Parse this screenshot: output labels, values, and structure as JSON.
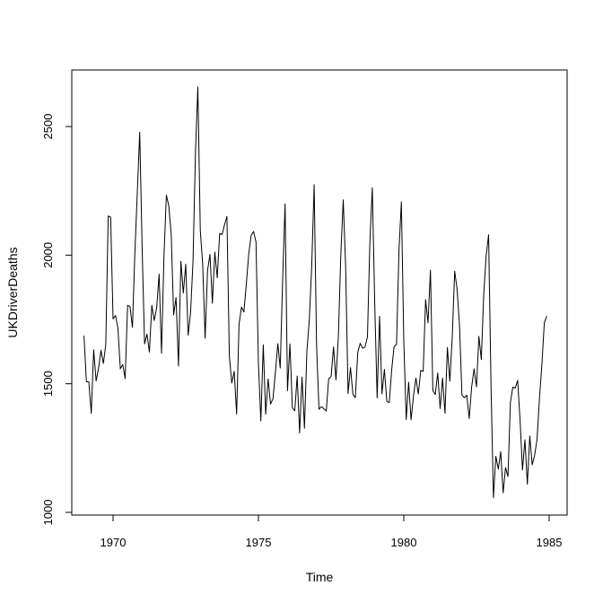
{
  "chart_data": {
    "type": "line",
    "title": "",
    "xlabel": "Time",
    "ylabel": "UKDriverDeaths",
    "xlim": [
      1968.8,
      1985.1
    ],
    "ylim": [
      1000,
      2700
    ],
    "x_ticks": [
      1970,
      1975,
      1980,
      1985
    ],
    "y_ticks": [
      1000,
      1500,
      2000,
      2500
    ],
    "grid": false,
    "legend": "none",
    "line_color": "#000000",
    "x_start": 1969,
    "frequency": 12,
    "series": [
      {
        "values": [
          1687,
          1508,
          1507,
          1385,
          1632,
          1511,
          1559,
          1630,
          1579,
          1653,
          2152,
          2148,
          1752,
          1765,
          1717,
          1558,
          1575,
          1520,
          1805,
          1800,
          1719,
          2008,
          2242,
          2478,
          2030,
          1655,
          1693,
          1623,
          1805,
          1746,
          1795,
          1926,
          1619,
          1992,
          2233,
          2192,
          2080,
          1768,
          1835,
          1569,
          1976,
          1853,
          1965,
          1689,
          1778,
          1976,
          2397,
          2654,
          2097,
          1963,
          1677,
          1941,
          2003,
          1813,
          2012,
          1912,
          2084,
          2080,
          2118,
          2150,
          1608,
          1503,
          1548,
          1382,
          1731,
          1798,
          1779,
          1887,
          2004,
          2077,
          2092,
          2051,
          1577,
          1356,
          1652,
          1382,
          1519,
          1421,
          1442,
          1543,
          1656,
          1561,
          1905,
          2199,
          1473,
          1655,
          1407,
          1395,
          1530,
          1309,
          1526,
          1327,
          1627,
          1748,
          1958,
          2274,
          1648,
          1401,
          1411,
          1403,
          1394,
          1520,
          1528,
          1643,
          1515,
          1685,
          2000,
          2215,
          1956,
          1462,
          1563,
          1459,
          1446,
          1622,
          1657,
          1638,
          1643,
          1683,
          2050,
          2262,
          1813,
          1445,
          1762,
          1461,
          1556,
          1431,
          1427,
          1554,
          1645,
          1653,
          2016,
          2207,
          1665,
          1361,
          1506,
          1360,
          1453,
          1522,
          1460,
          1552,
          1548,
          1827,
          1737,
          1941,
          1474,
          1458,
          1542,
          1404,
          1522,
          1385,
          1641,
          1510,
          1681,
          1938,
          1868,
          1726,
          1456,
          1445,
          1456,
          1365,
          1487,
          1558,
          1488,
          1684,
          1594,
          1850,
          1998,
          2079,
          1494,
          1057,
          1218,
          1168,
          1236,
          1076,
          1174,
          1139,
          1427,
          1487,
          1483,
          1513,
          1357,
          1165,
          1282,
          1110,
          1297,
          1185,
          1222,
          1284,
          1444,
          1575,
          1737,
          1763
        ]
      }
    ]
  }
}
